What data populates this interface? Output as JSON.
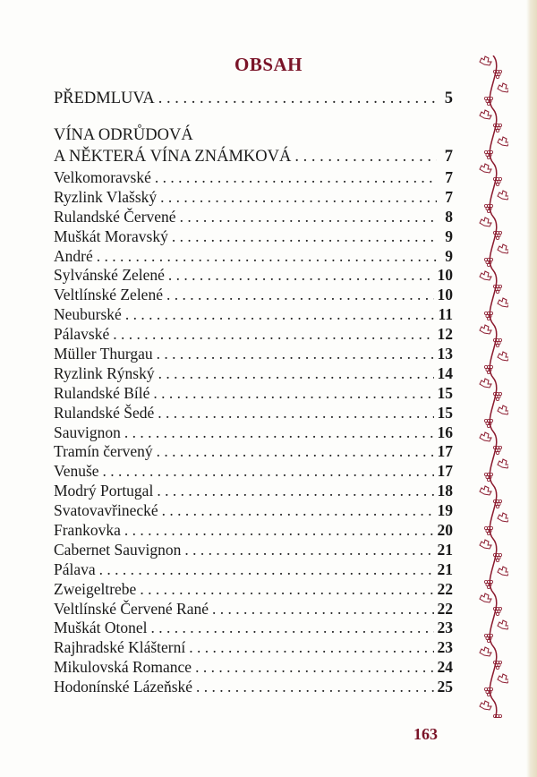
{
  "title": "OBSAH",
  "preface": {
    "label": "PŘEDMLUVA",
    "page": "5"
  },
  "section": {
    "line1": "VÍNA ODRŮDOVÁ",
    "line2": "A NĚKTERÁ VÍNA ZNÁMKOVÁ",
    "page": "7"
  },
  "entries": [
    {
      "label": "Velkomoravské",
      "page": "7"
    },
    {
      "label": "Ryzlink Vlašský",
      "page": "7"
    },
    {
      "label": "Rulandské Červené",
      "page": "8"
    },
    {
      "label": "Muškát Moravský",
      "page": "9"
    },
    {
      "label": "André",
      "page": "9"
    },
    {
      "label": "Sylvánské Zelené",
      "page": "10"
    },
    {
      "label": "Veltlínské Zelené",
      "page": "10"
    },
    {
      "label": "Neuburské",
      "page": "11"
    },
    {
      "label": "Pálavské",
      "page": "12"
    },
    {
      "label": "Müller Thurgau",
      "page": "13"
    },
    {
      "label": "Ryzlink Rýnský",
      "page": "14"
    },
    {
      "label": "Rulandské Bílé",
      "page": "15"
    },
    {
      "label": "Rulandské Šedé",
      "page": "15"
    },
    {
      "label": "Sauvignon",
      "page": "16"
    },
    {
      "label": "Tramín červený",
      "page": "17"
    },
    {
      "label": "Venuše",
      "page": "17"
    },
    {
      "label": "Modrý Portugal",
      "page": "18"
    },
    {
      "label": "Svatovavřinecké",
      "page": "19"
    },
    {
      "label": "Frankovka",
      "page": "20"
    },
    {
      "label": "Cabernet Sauvignon",
      "page": "21"
    },
    {
      "label": "Pálava",
      "page": "21"
    },
    {
      "label": "Zweigeltrebe",
      "page": "22"
    },
    {
      "label": "Veltlínské Červené Rané",
      "page": "22"
    },
    {
      "label": "Muškát Otonel",
      "page": "23"
    },
    {
      "label": "Rajhradské Klášterní",
      "page": "23"
    },
    {
      "label": "Mikulovská Romance",
      "page": "24"
    },
    {
      "label": "Hodonínské Lázeňské",
      "page": "25"
    }
  ],
  "page_number": "163",
  "colors": {
    "accent": "#7a1428",
    "vine": "#8b1a2e"
  },
  "decoration": "grapevine-border"
}
